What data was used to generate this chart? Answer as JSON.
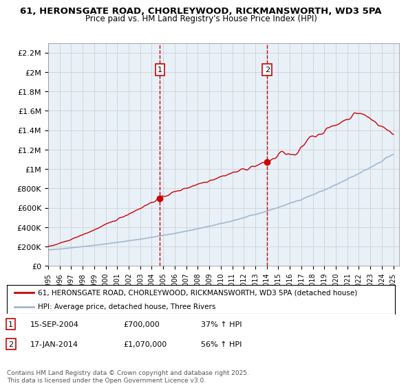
{
  "title1": "61, HERONSGATE ROAD, CHORLEYWOOD, RICKMANSWORTH, WD3 5PA",
  "title2": "Price paid vs. HM Land Registry's House Price Index (HPI)",
  "ylabel_ticks": [
    "£0",
    "£200K",
    "£400K",
    "£600K",
    "£800K",
    "£1M",
    "£1.2M",
    "£1.4M",
    "£1.6M",
    "£1.8M",
    "£2M",
    "£2.2M"
  ],
  "ytick_vals": [
    0,
    200000,
    400000,
    600000,
    800000,
    1000000,
    1200000,
    1400000,
    1600000,
    1800000,
    2000000,
    2200000
  ],
  "ylim": [
    0,
    2300000
  ],
  "x_start_year": 1995,
  "x_end_year": 2025,
  "sale1_year": 2004.71,
  "sale1_price": 700000,
  "sale2_year": 2014.04,
  "sale2_price": 1070000,
  "sale1_label": "1",
  "sale2_label": "2",
  "line_color_property": "#cc0000",
  "line_color_hpi": "#a0b8d0",
  "dashed_line_color": "#cc0000",
  "background_color": "#e8f0f8",
  "plot_bg": "#ffffff",
  "legend_line1": "61, HERONSGATE ROAD, CHORLEYWOOD, RICKMANSWORTH, WD3 5PA (detached house)",
  "legend_line2": "HPI: Average price, detached house, Three Rivers",
  "annotation1": "15-SEP-2004     £700,000        37% ↑ HPI",
  "annotation2": "17-JAN-2014     £1,070,000      56% ↑ HPI",
  "footer": "Contains HM Land Registry data © Crown copyright and database right 2025.\nThis data is licensed under the Open Government Licence v3.0.",
  "grid_color": "#cccccc"
}
